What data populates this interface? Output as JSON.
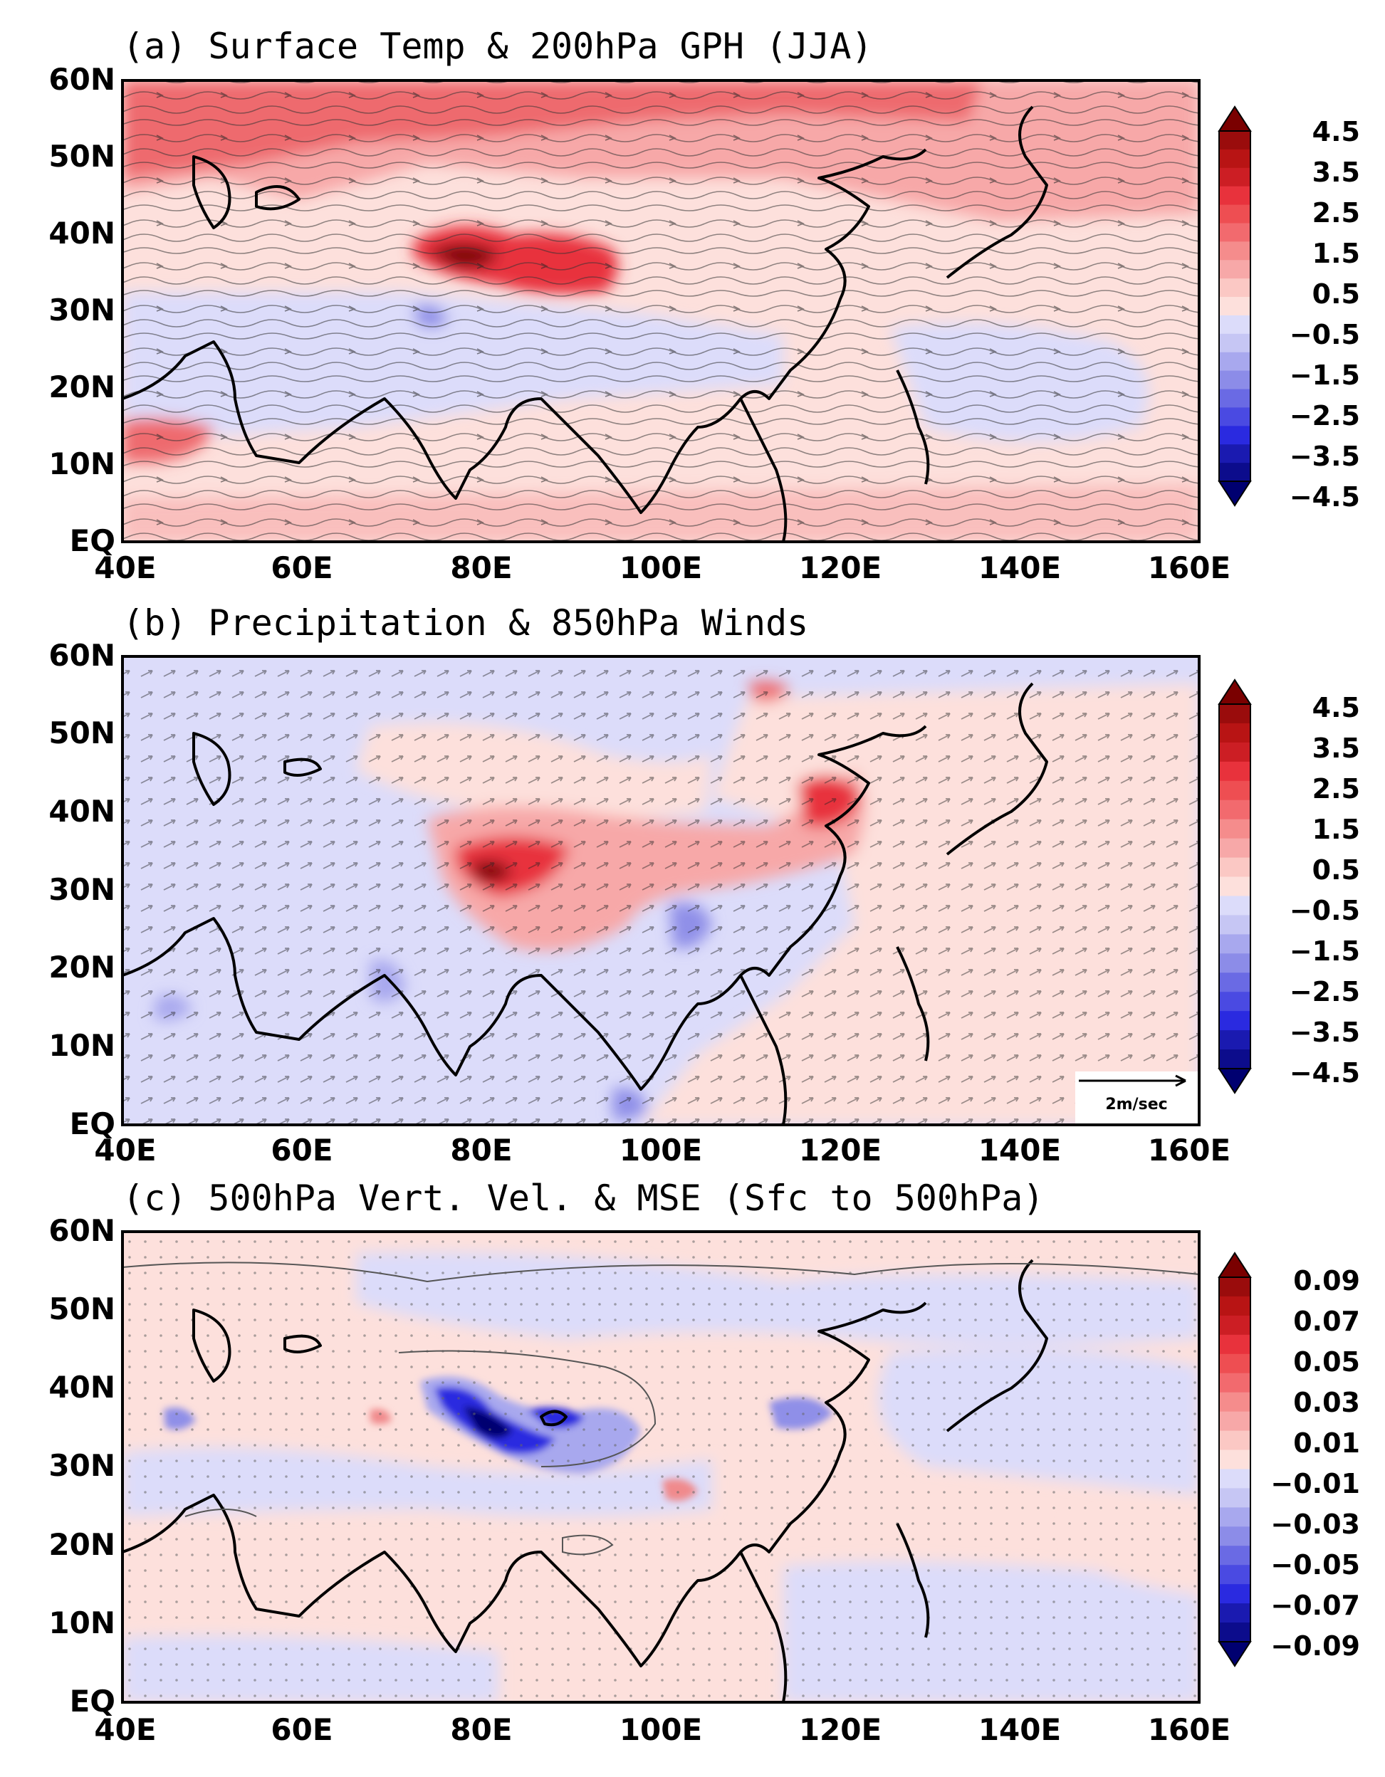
{
  "figure": {
    "x_ticks": [
      "40E",
      "60E",
      "80E",
      "100E",
      "120E",
      "140E",
      "160E"
    ],
    "y_ticks": [
      "60N",
      "50N",
      "40N",
      "30N",
      "20N",
      "10N",
      "EQ"
    ]
  },
  "panels": [
    {
      "id": "a",
      "title": "(a) Surface Temp & 200hPa GPH (JJA)",
      "colorbar": {
        "labels": [
          "4.5",
          "3.5",
          "2.5",
          "1.5",
          "0.5",
          "−0.5",
          "−1.5",
          "−2.5",
          "−3.5",
          "−4.5"
        ]
      }
    },
    {
      "id": "b",
      "title": "(b) Precipitation & 850hPa Winds",
      "reference_vector": "2m/sec",
      "colorbar": {
        "labels": [
          "4.5",
          "3.5",
          "2.5",
          "1.5",
          "0.5",
          "−0.5",
          "−1.5",
          "−2.5",
          "−3.5",
          "−4.5"
        ]
      }
    },
    {
      "id": "c",
      "title": "(c) 500hPa Vert. Vel. & MSE (Sfc to 500hPa)",
      "colorbar": {
        "labels": [
          "0.09",
          "0.07",
          "0.05",
          "0.03",
          "0.01",
          "−0.01",
          "−0.03",
          "−0.05",
          "−0.07",
          "−0.09"
        ]
      }
    }
  ],
  "colors": {
    "red_strong": "#7a0000",
    "red": "#e8323c",
    "red_light": "#f7a8a8",
    "red_pale": "#fde0dc",
    "blue_pale": "#dcdcfa",
    "blue_light": "#a8a8ee",
    "blue": "#2a2ae0",
    "blue_strong": "#000070",
    "coast": "#000000"
  }
}
